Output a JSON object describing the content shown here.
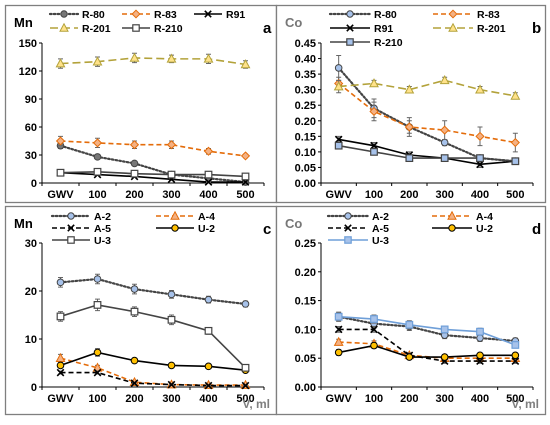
{
  "colors": {
    "gray_dark": "#444444",
    "gray_mid": "#777777",
    "black": "#000000",
    "orange": "#e46c0a",
    "olive": "#b3a23a",
    "olive_fill": "#ffe28a",
    "orange_fill": "#f4b183",
    "blue": "#6f9fd8",
    "blue_light": "#a7c2ea",
    "frame": "#7f7f7f",
    "gold": "#ffc000"
  },
  "chart_data": [
    {
      "type": "line",
      "panel_letter": "a",
      "corner_label": "Mn",
      "x_label": "",
      "categories": [
        "GWV",
        "100",
        "200",
        "300",
        "400",
        "500"
      ],
      "ylim": [
        0,
        150
      ],
      "yticks": [
        0,
        30,
        60,
        90,
        120,
        150
      ],
      "legend": "top, 3 columns",
      "series": [
        {
          "name": "R-80",
          "style": "dotted",
          "marker": "circle",
          "color": "gray_dark",
          "fill": "gray_mid",
          "values": [
            40,
            28,
            21,
            9,
            5,
            1
          ],
          "err": [
            3,
            2,
            2,
            1,
            1,
            0.5
          ]
        },
        {
          "name": "R-83",
          "style": "dashed",
          "marker": "diamond",
          "color": "orange",
          "fill": "orange_fill",
          "values": [
            45,
            43,
            41,
            41,
            34,
            29
          ],
          "err": [
            5,
            5,
            4,
            4,
            3,
            2
          ]
        },
        {
          "name": "R91",
          "style": "solid",
          "marker": "x",
          "color": "black",
          "fill": "black",
          "values": [
            11,
            9,
            7,
            4,
            1,
            1
          ],
          "err": [
            2,
            1,
            1,
            1,
            0.5,
            0.5
          ]
        },
        {
          "name": "R-201",
          "style": "longdash",
          "marker": "triangle",
          "color": "olive",
          "fill": "olive_fill",
          "values": [
            128,
            130,
            134,
            133,
            133,
            127
          ],
          "err": [
            5,
            5,
            5,
            4,
            5,
            4
          ]
        },
        {
          "name": "R-210",
          "style": "solid",
          "marker": "square",
          "color": "gray_dark",
          "fill": "white",
          "values": [
            11,
            12,
            10,
            9,
            9,
            7
          ],
          "err": [
            2,
            2,
            2,
            1,
            1,
            1
          ]
        }
      ]
    },
    {
      "type": "line",
      "panel_letter": "b",
      "corner_label": "Co",
      "x_label": "",
      "categories": [
        "GWV",
        "100",
        "200",
        "300",
        "400",
        "500"
      ],
      "ylim": [
        0,
        0.45
      ],
      "yticks": [
        0,
        0.05,
        0.1,
        0.15,
        0.2,
        0.25,
        0.3,
        0.35,
        0.4,
        0.45
      ],
      "ytick_labels": [
        "0.00",
        "0.05",
        "0.10",
        "0.15",
        "0.20",
        "0.25",
        "0.30",
        "0.35",
        "0.40",
        "0.45"
      ],
      "legend": "top, 2 columns",
      "series": [
        {
          "name": "R-80",
          "style": "dotted",
          "marker": "circle",
          "color": "gray_dark",
          "fill": "blue_light",
          "values": [
            0.37,
            0.24,
            0.18,
            0.13,
            0.08,
            0.07
          ],
          "err": [
            0.04,
            0.03,
            0.02,
            0.01,
            0.01,
            0.01
          ]
        },
        {
          "name": "R-83",
          "style": "dashed",
          "marker": "diamond",
          "color": "orange",
          "fill": "orange_fill",
          "values": [
            0.32,
            0.23,
            0.18,
            0.17,
            0.15,
            0.13
          ],
          "err": [
            0.02,
            0.03,
            0.03,
            0.03,
            0.03,
            0.03
          ]
        },
        {
          "name": "R91",
          "style": "solid",
          "marker": "x",
          "color": "black",
          "fill": "black",
          "values": [
            0.14,
            0.12,
            0.09,
            0.08,
            0.06,
            0.07
          ],
          "err": [
            0.01,
            0.01,
            0.01,
            0.01,
            0.01,
            0.01
          ]
        },
        {
          "name": "R-201",
          "style": "longdash",
          "marker": "triangle",
          "color": "olive",
          "fill": "olive_fill",
          "values": [
            0.31,
            0.32,
            0.3,
            0.33,
            0.3,
            0.28
          ],
          "err": [
            0.02,
            0.01,
            0.01,
            0.01,
            0.01,
            0.01
          ]
        },
        {
          "name": "R-210",
          "style": "solid",
          "marker": "square",
          "color": "gray_dark",
          "fill": "blue_light",
          "values": [
            0.12,
            0.1,
            0.08,
            0.08,
            0.08,
            0.07
          ],
          "err": [
            0.01,
            0.01,
            0.01,
            0.01,
            0.01,
            0.01
          ]
        }
      ]
    },
    {
      "type": "line",
      "panel_letter": "c",
      "corner_label": "Mn",
      "x_label": "V, ml",
      "categories": [
        "GWV",
        "100",
        "200",
        "300",
        "400",
        "500"
      ],
      "ylim": [
        0,
        30
      ],
      "yticks": [
        0,
        10,
        20,
        30
      ],
      "legend": "top, 2 columns",
      "series": [
        {
          "name": "A-2",
          "style": "dotted",
          "marker": "circle",
          "color": "gray_dark",
          "fill": "blue_light",
          "values": [
            21.8,
            22.5,
            20.4,
            19.3,
            18.2,
            17.3
          ],
          "err": [
            1,
            1,
            1,
            0.8,
            0.7,
            0.6
          ]
        },
        {
          "name": "A-4",
          "style": "dashed",
          "marker": "triangle",
          "color": "orange",
          "fill": "orange_fill",
          "values": [
            6,
            4,
            1,
            0.5,
            0.4,
            0.4
          ],
          "err": [
            0.8,
            0.5,
            0.3,
            0.2,
            0.2,
            0.2
          ]
        },
        {
          "name": "A-5",
          "style": "dashed",
          "marker": "x",
          "color": "black",
          "fill": "black",
          "values": [
            3,
            3,
            0.8,
            0.5,
            0.3,
            0.3
          ],
          "err": [
            0.3,
            0.3,
            0.2,
            0.1,
            0.1,
            0.1
          ]
        },
        {
          "name": "U-2",
          "style": "solid",
          "marker": "circle",
          "color": "black",
          "fill": "gold",
          "values": [
            4.5,
            7.2,
            5.5,
            4.5,
            4.3,
            3.5
          ],
          "err": [
            0.5,
            0.8,
            0.5,
            0.4,
            0.4,
            0.4
          ]
        },
        {
          "name": "U-3",
          "style": "solid",
          "marker": "square",
          "color": "gray_dark",
          "fill": "white",
          "values": [
            14.7,
            17.1,
            15.7,
            14,
            11.7,
            4
          ],
          "err": [
            1,
            1.2,
            1,
            1,
            0.7,
            0.5
          ]
        }
      ]
    },
    {
      "type": "line",
      "panel_letter": "d",
      "corner_label": "Co",
      "x_label": "V, ml",
      "categories": [
        "GWV",
        "100",
        "200",
        "300",
        "400",
        "500"
      ],
      "ylim": [
        0,
        0.25
      ],
      "yticks": [
        0,
        0.05,
        0.1,
        0.15,
        0.2,
        0.25
      ],
      "ytick_labels": [
        "0.00",
        "0.05",
        "0.10",
        "0.15",
        "0.20",
        "0.25"
      ],
      "legend": "top, 2 columns",
      "series": [
        {
          "name": "A-2",
          "style": "dotted",
          "marker": "circle",
          "color": "gray_dark",
          "fill": "blue_light",
          "values": [
            0.122,
            0.11,
            0.105,
            0.09,
            0.085,
            0.08
          ],
          "err": [
            0.008,
            0.008,
            0.007,
            0.006,
            0.006,
            0.005
          ]
        },
        {
          "name": "A-4",
          "style": "dashed",
          "marker": "triangle",
          "color": "orange",
          "fill": "orange_fill",
          "values": [
            0.078,
            0.075,
            0.055,
            0.05,
            0.05,
            0.05
          ],
          "err": [
            0.005,
            0.005,
            0.004,
            0.004,
            0.004,
            0.004
          ]
        },
        {
          "name": "A-5",
          "style": "dashed",
          "marker": "x",
          "color": "black",
          "fill": "black",
          "values": [
            0.1,
            0.1,
            0.055,
            0.045,
            0.045,
            0.045
          ],
          "err": [
            0.005,
            0.005,
            0.004,
            0.004,
            0.004,
            0.004
          ]
        },
        {
          "name": "U-2",
          "style": "solid",
          "marker": "circle",
          "color": "black",
          "fill": "gold",
          "values": [
            0.06,
            0.072,
            0.052,
            0.052,
            0.055,
            0.055
          ],
          "err": [
            0.005,
            0.005,
            0.004,
            0.004,
            0.004,
            0.004
          ]
        },
        {
          "name": "U-3",
          "style": "solid",
          "marker": "square",
          "color": "blue",
          "fill": "blue_light",
          "values": [
            0.122,
            0.118,
            0.108,
            0.1,
            0.096,
            0.073
          ],
          "err": [
            0.007,
            0.007,
            0.007,
            0.006,
            0.006,
            0.005
          ]
        }
      ]
    }
  ]
}
